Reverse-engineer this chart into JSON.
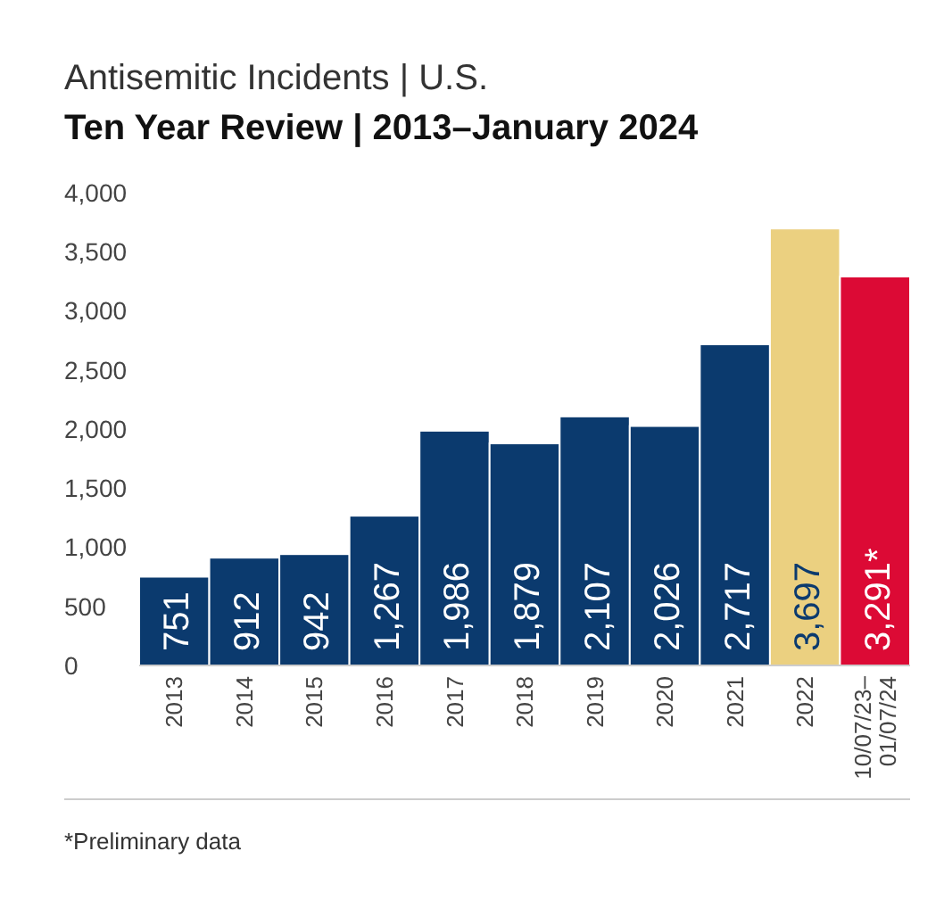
{
  "chart_data": {
    "type": "bar",
    "title": "Antisemitic Incidents | U.S.",
    "subtitle": "Ten Year Review | 2013–January 2024",
    "categories": [
      "2013",
      "2014",
      "2015",
      "2016",
      "2017",
      "2018",
      "2019",
      "2020",
      "2021",
      "2022",
      "10/07/23–\n01/07/24"
    ],
    "values": [
      751,
      912,
      942,
      1267,
      1986,
      1879,
      2107,
      2026,
      2717,
      3697,
      3291
    ],
    "colors": [
      "#0b3a6e",
      "#0b3a6e",
      "#0b3a6e",
      "#0b3a6e",
      "#0b3a6e",
      "#0b3a6e",
      "#0b3a6e",
      "#0b3a6e",
      "#0b3a6e",
      "#ebd080",
      "#dc0a35"
    ],
    "value_labels": [
      "751",
      "912",
      "942",
      "1,267",
      "1,986",
      "1,879",
      "2,107",
      "2,026",
      "2,717",
      "3,697",
      "3,291*"
    ],
    "ylim": [
      0,
      4000
    ],
    "yticks": [
      {
        "value": 0,
        "label": "0"
      },
      {
        "value": 500,
        "label": "500"
      },
      {
        "value": 1000,
        "label": "1,000"
      },
      {
        "value": 1500,
        "label": "1,500"
      },
      {
        "value": 2000,
        "label": "2,000"
      },
      {
        "value": 2500,
        "label": "2,500"
      },
      {
        "value": 3000,
        "label": "3,000"
      },
      {
        "value": 3500,
        "label": "3,500"
      },
      {
        "value": 4000,
        "label": "4,000"
      }
    ],
    "grid": false,
    "annotations": [
      "*Preliminary data"
    ]
  }
}
